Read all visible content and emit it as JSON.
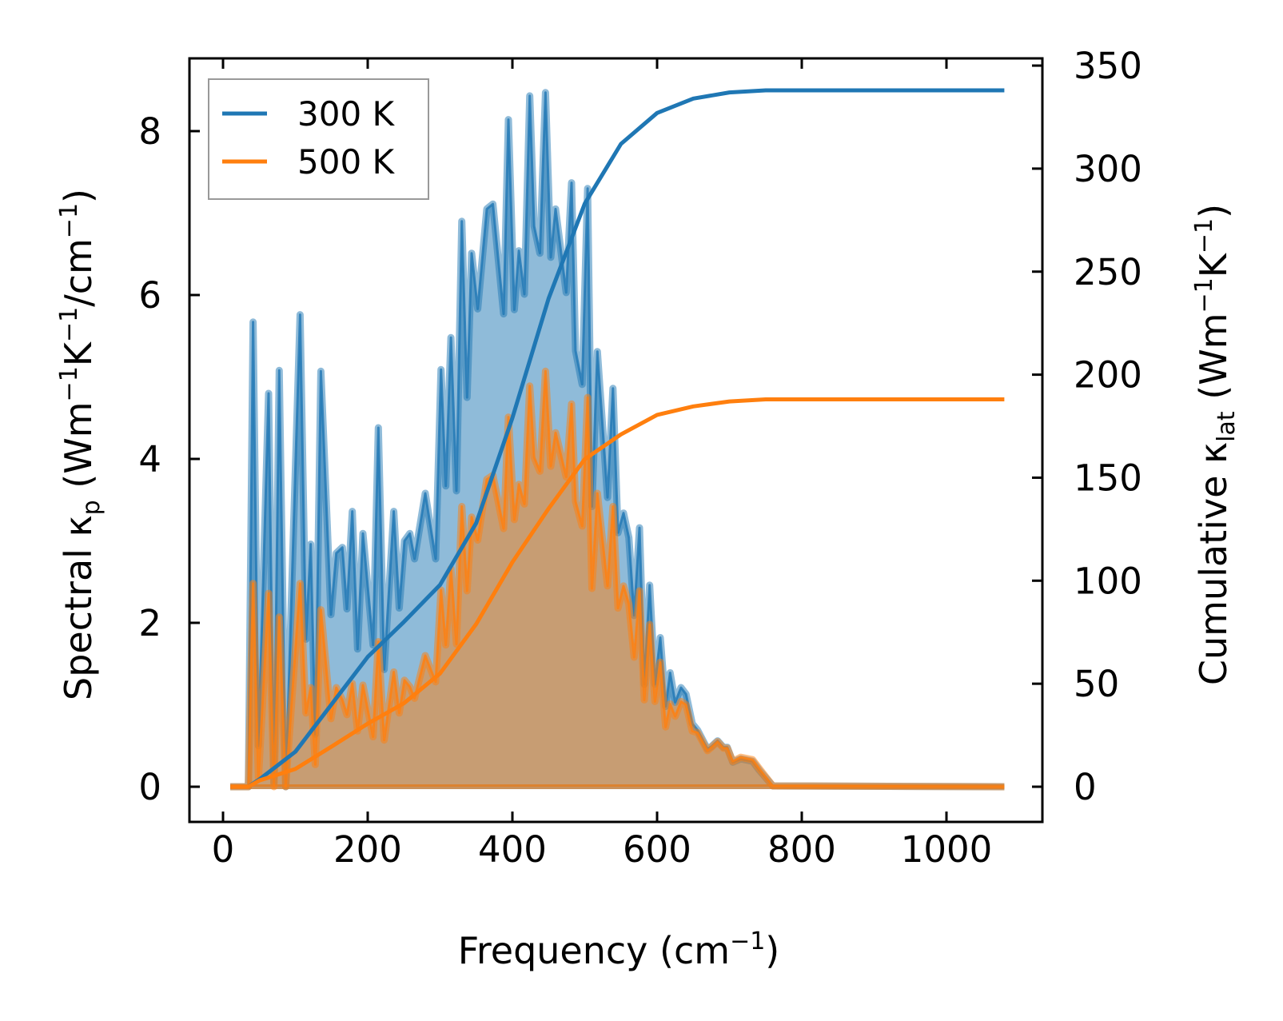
{
  "chart_data": {
    "type": "line",
    "title": "",
    "xlabel": {
      "main": "Frequency (cm",
      "sup": "−1",
      "end": ")"
    },
    "ylabel_left": {
      "pre": "Spectral κ",
      "sub": "p",
      "mid": " (Wm",
      "sup1": "−1",
      "k": "K",
      "sup2": "−1",
      "rest": "/cm",
      "sup3": "−1",
      "end": ")"
    },
    "ylabel_right": {
      "pre": "Cumulative κ",
      "sub": "lat",
      "mid": " (Wm",
      "sup1": "−1",
      "k": "K",
      "sup2": "−1",
      "end": ")"
    },
    "xlim": [
      -45,
      1150
    ],
    "ylim_left": [
      -0.42,
      8.9
    ],
    "ylim_right": [
      -16,
      352
    ],
    "xticks": [
      "0",
      "200",
      "400",
      "600",
      "800",
      "1000"
    ],
    "xtick_values": [
      0,
      200,
      400,
      600,
      800,
      1000
    ],
    "yticks_left": [
      "0",
      "2",
      "4",
      "6",
      "8"
    ],
    "ytick_left_values": [
      0,
      2,
      4,
      6,
      8
    ],
    "yticks_right": [
      "0",
      "50",
      "100",
      "150",
      "200",
      "250",
      "300",
      "350"
    ],
    "ytick_right_values": [
      0,
      50,
      100,
      150,
      200,
      250,
      300,
      350
    ],
    "legend": {
      "placement": "top-left",
      "entries": [
        "300 K",
        "500 K"
      ]
    },
    "colors": {
      "300K": "#1f77b4",
      "500K": "#ff7f0e"
    },
    "spectral": {
      "x": [
        10,
        35,
        41.6,
        48.9,
        63,
        70.4,
        77.7,
        86.6,
        106.5,
        114.6,
        121.2,
        127.5,
        135.2,
        149.2,
        156.6,
        165,
        171.3,
        178.7,
        186,
        193.4,
        207.4,
        214.7,
        222.8,
        236,
        243.5,
        250.8,
        258.2,
        264.8,
        279.6,
        293.9,
        301.3,
        308,
        315,
        322.6,
        330,
        337.4,
        343.6,
        352,
        364.6,
        373,
        387.8,
        394.5,
        402.6,
        409,
        416.6,
        424,
        430,
        438,
        445.7,
        453,
        459.7,
        474.4,
        481.8,
        487.3,
        496.5,
        504,
        510,
        517.5,
        531.5,
        539,
        546,
        553.6,
        561,
        568.3,
        575.7,
        582.3,
        589.7,
        597,
        604.4,
        611.8,
        618,
        625,
        633,
        640,
        648.6,
        656,
        669.6,
        675,
        683.6,
        691.7,
        697,
        704.6,
        715.7,
        732,
        741.4,
        760,
        1080
      ],
      "series": [
        {
          "name": "300 K",
          "values": [
            0,
            0,
            5.67,
            0.5,
            4.8,
            0.05,
            5.08,
            0,
            5.76,
            1.8,
            2.96,
            0.64,
            5.07,
            2.1,
            2.85,
            2.92,
            2.17,
            3.36,
            1.68,
            3.09,
            1.73,
            4.38,
            1.43,
            3.36,
            2.18,
            3.0,
            3.09,
            2.78,
            3.58,
            2.78,
            5.09,
            3.67,
            5.48,
            3.61,
            6.9,
            4.75,
            6.51,
            5.83,
            7.05,
            7.11,
            5.77,
            8.14,
            5.82,
            6.54,
            6.01,
            8.43,
            6.84,
            6.51,
            8.47,
            6.46,
            7.05,
            6.03,
            7.37,
            5.32,
            4.91,
            7.3,
            3.42,
            5.31,
            3.53,
            4.86,
            3.1,
            3.34,
            3.04,
            2.09,
            3.16,
            1.25,
            2.46,
            1.25,
            1.82,
            0.98,
            1.39,
            1.03,
            1.21,
            1.13,
            0.77,
            0.69,
            0.46,
            0.49,
            0.56,
            0.48,
            0.48,
            0.3,
            0.34,
            0.31,
            0.2,
            0.01,
            0
          ]
        },
        {
          "name": "500 K",
          "values": [
            0,
            0,
            2.48,
            0.1,
            2.36,
            0,
            2.07,
            0,
            2.48,
            0.9,
            1.21,
            0.27,
            2.16,
            0.83,
            1.21,
            1.06,
            0.88,
            1.26,
            0.68,
            1.24,
            0.61,
            1.77,
            0.57,
            1.4,
            0.9,
            1.3,
            1.22,
            1.08,
            1.6,
            1.28,
            2.4,
            1.73,
            2.66,
            1.74,
            3.42,
            2.39,
            3.29,
            3.01,
            3.75,
            3.8,
            3.15,
            4.51,
            3.26,
            3.69,
            3.45,
            4.89,
            4.02,
            3.85,
            5.07,
            3.91,
            4.32,
            3.78,
            4.67,
            3.48,
            3.18,
            4.75,
            2.42,
            3.58,
            2.45,
            3.42,
            2.18,
            2.45,
            2.23,
            1.58,
            2.39,
            1.06,
            1.98,
            1.04,
            1.52,
            0.73,
            1.01,
            0.86,
            1.04,
            1.0,
            0.68,
            0.66,
            0.44,
            0.48,
            0.55,
            0.47,
            0.47,
            0.31,
            0.36,
            0.33,
            0.22,
            0.01,
            0
          ]
        }
      ]
    },
    "cumulative": {
      "x": [
        10,
        35,
        50,
        100,
        150,
        200,
        250,
        300,
        350,
        400,
        450,
        500,
        550,
        600,
        650,
        700,
        750,
        1080
      ],
      "series": [
        {
          "name": "300 K",
          "values": [
            0,
            0,
            3.5,
            17,
            40,
            63,
            80,
            98,
            128,
            179,
            237,
            283,
            312,
            327,
            334,
            337,
            338,
            338
          ]
        },
        {
          "name": "500 K",
          "values": [
            0,
            0,
            3,
            8.6,
            19.5,
            30.6,
            40.5,
            55,
            79,
            109,
            135,
            159,
            171,
            180.5,
            184.6,
            187,
            188,
            188
          ]
        }
      ]
    }
  }
}
